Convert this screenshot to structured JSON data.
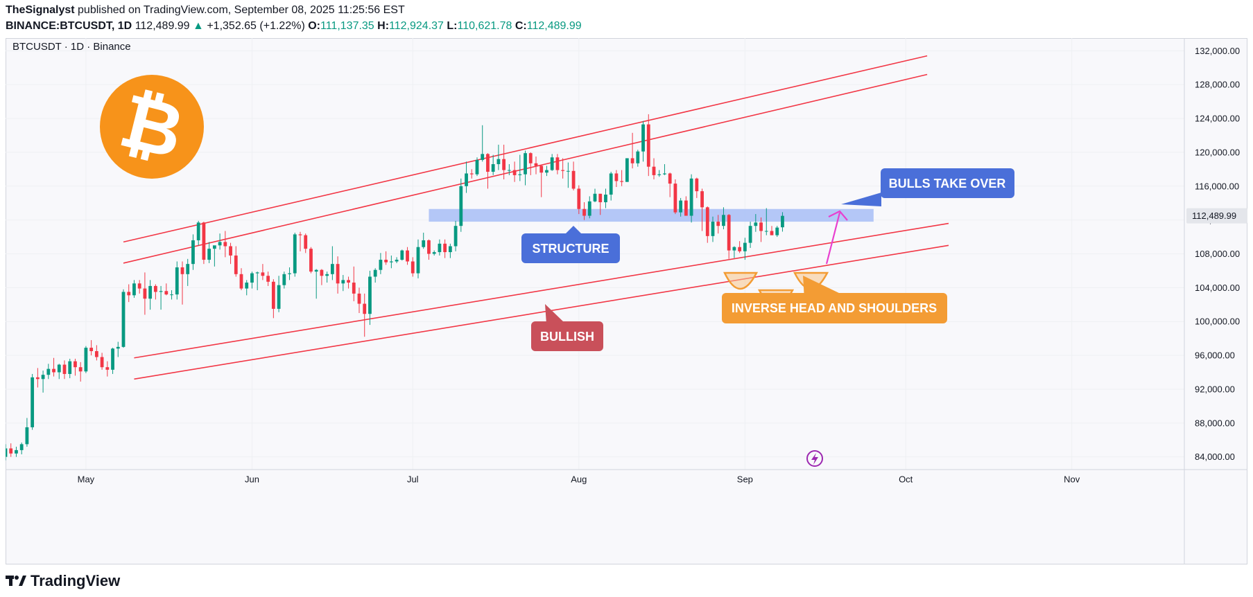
{
  "header": {
    "author": "TheSignalyst",
    "published_text": "published on TradingView.com, September 08, 2025 11:25:56 EST",
    "symbol": "BINANCE:BTCUSDT, 1D",
    "last": "112,489.99",
    "change": "+1,352.65 (+1.22%)",
    "o_label": "O:",
    "o_value": "111,137.35",
    "h_label": "H:",
    "h_value": "112,924.37",
    "l_label": "L:",
    "l_value": "110,621.78",
    "c_label": "C:",
    "c_value": "112,489.99"
  },
  "footer": {
    "brand": "TradingView"
  },
  "colors": {
    "up": "#089981",
    "down": "#f23645",
    "channel": "#f23645",
    "structure": "#9db7f5"
  },
  "chart_data": {
    "type": "candlestick",
    "title": "BTCUSDT · 1D · Binance",
    "ylim": [
      82500,
      133500
    ],
    "y_ticks": [
      84000,
      88000,
      92000,
      96000,
      100000,
      104000,
      108000,
      112000,
      116000,
      120000,
      124000,
      128000,
      132000
    ],
    "y_tick_labels": [
      "84,000.00",
      "88,000.00",
      "92,000.00",
      "96,000.00",
      "100,000.00",
      "104,000.00",
      "108,000.00",
      "112,000.00",
      "116,000.00",
      "120,000.00",
      "124,000.00",
      "128,000.00",
      "132,000.00"
    ],
    "x_labels": [
      "May",
      "Jun",
      "Jul",
      "Aug",
      "Sep",
      "Oct",
      "Nov"
    ],
    "x_label_dates": [
      "2025-05-01",
      "2025-06-01",
      "2025-07-01",
      "2025-08-01",
      "2025-09-01",
      "2025-10-01",
      "2025-11-01"
    ],
    "xlim": [
      "2025-04-16",
      "2025-11-22"
    ],
    "last_price_label": "112,489.99",
    "candles": [
      [
        "2025-04-16",
        84000,
        85500,
        83600,
        85000
      ],
      [
        "2025-04-17",
        85000,
        85600,
        84000,
        84400
      ],
      [
        "2025-04-18",
        84400,
        85200,
        84000,
        84800
      ],
      [
        "2025-04-19",
        84800,
        85700,
        84300,
        85500
      ],
      [
        "2025-04-20",
        85500,
        88600,
        85200,
        87500
      ],
      [
        "2025-04-21",
        87500,
        93800,
        87200,
        93400
      ],
      [
        "2025-04-22",
        93400,
        94500,
        92200,
        93200
      ],
      [
        "2025-04-23",
        93200,
        94200,
        91600,
        93700
      ],
      [
        "2025-04-24",
        93700,
        95000,
        93200,
        94400
      ],
      [
        "2025-04-25",
        94400,
        95700,
        93500,
        94000
      ],
      [
        "2025-04-26",
        94000,
        95000,
        93200,
        94900
      ],
      [
        "2025-04-27",
        94900,
        95400,
        93200,
        93800
      ],
      [
        "2025-04-28",
        93800,
        95600,
        93300,
        95300
      ],
      [
        "2025-04-29",
        95300,
        95600,
        93600,
        94600
      ],
      [
        "2025-04-30",
        94600,
        95200,
        92900,
        94100
      ],
      [
        "2025-05-01",
        94100,
        97100,
        93900,
        96900
      ],
      [
        "2025-05-02",
        96900,
        97800,
        96000,
        96500
      ],
      [
        "2025-05-03",
        96500,
        97200,
        95400,
        95800
      ],
      [
        "2025-05-04",
        95800,
        96300,
        94300,
        94600
      ],
      [
        "2025-05-05",
        94600,
        95300,
        93500,
        94300
      ],
      [
        "2025-05-06",
        94300,
        96900,
        93800,
        96800
      ],
      [
        "2025-05-07",
        96800,
        97600,
        95800,
        97000
      ],
      [
        "2025-05-08",
        97000,
        103800,
        96900,
        103500
      ],
      [
        "2025-05-09",
        103500,
        104400,
        102300,
        103100
      ],
      [
        "2025-05-10",
        103100,
        104900,
        102800,
        104500
      ],
      [
        "2025-05-11",
        104500,
        104900,
        103300,
        103900
      ],
      [
        "2025-05-12",
        103900,
        105800,
        100800,
        102700
      ],
      [
        "2025-05-13",
        102700,
        104900,
        101400,
        104200
      ],
      [
        "2025-05-14",
        104200,
        104400,
        102600,
        103500
      ],
      [
        "2025-05-15",
        103500,
        104200,
        101400,
        103600
      ],
      [
        "2025-05-16",
        103600,
        104500,
        103100,
        103200
      ],
      [
        "2025-05-17",
        103200,
        103700,
        102600,
        103200
      ],
      [
        "2025-05-18",
        103200,
        107100,
        102600,
        106400
      ],
      [
        "2025-05-19",
        106400,
        107100,
        102000,
        105600
      ],
      [
        "2025-05-20",
        105600,
        107400,
        104200,
        106800
      ],
      [
        "2025-05-21",
        106800,
        110300,
        106100,
        109600
      ],
      [
        "2025-05-22",
        109600,
        111900,
        109000,
        111700
      ],
      [
        "2025-05-23",
        111700,
        111800,
        106800,
        107300
      ],
      [
        "2025-05-24",
        107300,
        109400,
        106900,
        108600
      ],
      [
        "2025-05-25",
        108600,
        108700,
        106500,
        109000
      ],
      [
        "2025-05-26",
        109000,
        110400,
        108500,
        109400
      ],
      [
        "2025-05-27",
        109400,
        110700,
        107600,
        108900
      ],
      [
        "2025-05-28",
        108900,
        109300,
        106800,
        107800
      ],
      [
        "2025-05-29",
        107800,
        108900,
        105300,
        105600
      ],
      [
        "2025-05-30",
        105600,
        106300,
        103700,
        103900
      ],
      [
        "2025-05-31",
        103900,
        104900,
        103100,
        104600
      ],
      [
        "2025-06-01",
        104600,
        105900,
        103900,
        105700
      ],
      [
        "2025-06-02",
        105700,
        105900,
        103700,
        105800
      ],
      [
        "2025-06-03",
        105800,
        106800,
        104900,
        105400
      ],
      [
        "2025-06-04",
        105400,
        105900,
        104200,
        104700
      ],
      [
        "2025-06-05",
        104700,
        105000,
        100400,
        101500
      ],
      [
        "2025-06-06",
        101500,
        105400,
        101100,
        104300
      ],
      [
        "2025-06-07",
        104300,
        105900,
        103900,
        105600
      ],
      [
        "2025-06-08",
        105600,
        106400,
        104900,
        105700
      ],
      [
        "2025-06-09",
        105700,
        110500,
        105300,
        110300
      ],
      [
        "2025-06-10",
        110300,
        110600,
        108300,
        110200
      ],
      [
        "2025-06-11",
        110200,
        110400,
        108100,
        108600
      ],
      [
        "2025-06-12",
        108600,
        108800,
        105700,
        105900
      ],
      [
        "2025-06-13",
        105900,
        106200,
        102700,
        106100
      ],
      [
        "2025-06-14",
        106100,
        106200,
        104300,
        105400
      ],
      [
        "2025-06-15",
        105400,
        105900,
        104600,
        105600
      ],
      [
        "2025-06-16",
        105600,
        108900,
        104900,
        106800
      ],
      [
        "2025-06-17",
        106800,
        107700,
        103300,
        104500
      ],
      [
        "2025-06-18",
        104500,
        105500,
        103600,
        104900
      ],
      [
        "2025-06-19",
        104900,
        105300,
        103900,
        104600
      ],
      [
        "2025-06-20",
        104600,
        106500,
        102400,
        103300
      ],
      [
        "2025-06-21",
        103300,
        104000,
        101000,
        102100
      ],
      [
        "2025-06-22",
        102100,
        103300,
        98200,
        100900
      ],
      [
        "2025-06-23",
        100900,
        106000,
        99600,
        105300
      ],
      [
        "2025-06-24",
        105300,
        106300,
        104600,
        106100
      ],
      [
        "2025-06-25",
        106100,
        108100,
        105600,
        107300
      ],
      [
        "2025-06-26",
        107300,
        108300,
        106700,
        107000
      ],
      [
        "2025-06-27",
        107000,
        107800,
        106300,
        107100
      ],
      [
        "2025-06-28",
        107100,
        107600,
        106900,
        107300
      ],
      [
        "2025-06-29",
        107300,
        108500,
        107200,
        108400
      ],
      [
        "2025-06-30",
        108400,
        108800,
        106700,
        107100
      ],
      [
        "2025-07-01",
        107100,
        107600,
        105300,
        105700
      ],
      [
        "2025-07-02",
        105700,
        109700,
        105100,
        108800
      ],
      [
        "2025-07-03",
        108800,
        110500,
        108600,
        109600
      ],
      [
        "2025-07-04",
        109600,
        109700,
        107300,
        108000
      ],
      [
        "2025-07-05",
        108000,
        108400,
        107800,
        108200
      ],
      [
        "2025-07-06",
        108200,
        109700,
        107800,
        109200
      ],
      [
        "2025-07-07",
        109200,
        109700,
        107500,
        108200
      ],
      [
        "2025-07-08",
        108200,
        109200,
        107500,
        108900
      ],
      [
        "2025-07-09",
        108900,
        111900,
        108300,
        111300
      ],
      [
        "2025-07-10",
        111300,
        116900,
        110600,
        116000
      ],
      [
        "2025-07-11",
        116000,
        118900,
        115200,
        117500
      ],
      [
        "2025-07-12",
        117500,
        118000,
        116900,
        117400
      ],
      [
        "2025-07-13",
        117400,
        119400,
        117200,
        119100
      ],
      [
        "2025-07-14",
        119100,
        123200,
        118900,
        119800
      ],
      [
        "2025-07-15",
        119800,
        119900,
        115700,
        117700
      ],
      [
        "2025-07-16",
        117700,
        119700,
        117300,
        118600
      ],
      [
        "2025-07-17",
        118600,
        120900,
        117900,
        119200
      ],
      [
        "2025-07-18",
        119200,
        120900,
        116800,
        117900
      ],
      [
        "2025-07-19",
        117900,
        118600,
        117300,
        117900
      ],
      [
        "2025-07-20",
        117900,
        118900,
        116500,
        117300
      ],
      [
        "2025-07-21",
        117300,
        119700,
        116600,
        117400
      ],
      [
        "2025-07-22",
        117400,
        120200,
        116100,
        119900
      ],
      [
        "2025-07-23",
        119900,
        120000,
        117300,
        118700
      ],
      [
        "2025-07-24",
        118700,
        119500,
        117400,
        118400
      ],
      [
        "2025-07-25",
        118400,
        118500,
        114700,
        117600
      ],
      [
        "2025-07-26",
        117600,
        118400,
        117200,
        117900
      ],
      [
        "2025-07-27",
        117900,
        119800,
        117800,
        119400
      ],
      [
        "2025-07-28",
        119400,
        119800,
        117400,
        117900
      ],
      [
        "2025-07-29",
        117900,
        119300,
        116900,
        117800
      ],
      [
        "2025-07-30",
        117800,
        118800,
        115800,
        117800
      ],
      [
        "2025-07-31",
        117800,
        118900,
        115500,
        115700
      ],
      [
        "2025-08-01",
        115700,
        116100,
        112700,
        113300
      ],
      [
        "2025-08-02",
        113300,
        114100,
        112000,
        112500
      ],
      [
        "2025-08-03",
        112500,
        114800,
        112200,
        114200
      ],
      [
        "2025-08-04",
        114200,
        115700,
        114100,
        115100
      ],
      [
        "2025-08-05",
        115100,
        115100,
        112600,
        114100
      ],
      [
        "2025-08-06",
        114100,
        115700,
        113400,
        115000
      ],
      [
        "2025-08-07",
        115000,
        117700,
        114300,
        117500
      ],
      [
        "2025-08-08",
        117500,
        117900,
        115900,
        116600
      ],
      [
        "2025-08-09",
        116600,
        117900,
        116000,
        116500
      ],
      [
        "2025-08-10",
        116500,
        119300,
        116500,
        119300
      ],
      [
        "2025-08-11",
        119300,
        122300,
        118100,
        118700
      ],
      [
        "2025-08-12",
        118700,
        120300,
        118300,
        120100
      ],
      [
        "2025-08-13",
        120100,
        123700,
        118900,
        123300
      ],
      [
        "2025-08-14",
        123300,
        124500,
        117200,
        118300
      ],
      [
        "2025-08-15",
        118300,
        119300,
        116800,
        117300
      ],
      [
        "2025-08-16",
        117300,
        117900,
        117100,
        117400
      ],
      [
        "2025-08-17",
        117400,
        118600,
        117300,
        117500
      ],
      [
        "2025-08-18",
        117500,
        117600,
        114700,
        116300
      ],
      [
        "2025-08-19",
        116300,
        116800,
        112700,
        112900
      ],
      [
        "2025-08-20",
        112900,
        114600,
        112400,
        114300
      ],
      [
        "2025-08-21",
        114300,
        114800,
        112600,
        112500
      ],
      [
        "2025-08-22",
        112500,
        117400,
        111700,
        116900
      ],
      [
        "2025-08-23",
        116900,
        117000,
        114600,
        115400
      ],
      [
        "2025-08-24",
        115400,
        115700,
        110700,
        113500
      ],
      [
        "2025-08-25",
        113500,
        113600,
        109300,
        110100
      ],
      [
        "2025-08-26",
        110100,
        112400,
        109400,
        111800
      ],
      [
        "2025-08-27",
        111800,
        112600,
        110400,
        111300
      ],
      [
        "2025-08-28",
        111300,
        113500,
        110900,
        112600
      ],
      [
        "2025-08-29",
        112600,
        112700,
        107400,
        108400
      ],
      [
        "2025-08-30",
        108400,
        108900,
        107500,
        108800
      ],
      [
        "2025-08-31",
        108800,
        109500,
        108100,
        108300
      ],
      [
        "2025-09-01",
        108300,
        109900,
        107300,
        109300
      ],
      [
        "2025-09-02",
        109300,
        111800,
        108700,
        111300
      ],
      [
        "2025-09-03",
        111300,
        112700,
        110600,
        111700
      ],
      [
        "2025-09-04",
        111700,
        112300,
        109400,
        110700
      ],
      [
        "2025-09-05",
        110700,
        113400,
        110200,
        110700
      ],
      [
        "2025-09-06",
        110700,
        111300,
        110200,
        110200
      ],
      [
        "2025-09-07",
        110200,
        111300,
        110000,
        111100
      ],
      [
        "2025-09-08",
        111137.35,
        112924.37,
        110621.78,
        112489.99
      ]
    ],
    "channel_lines": [
      {
        "name": "upper-outer",
        "from": [
          "2025-05-08",
          109400
        ],
        "to": [
          "2025-10-05",
          131400
        ]
      },
      {
        "name": "upper-inner",
        "from": [
          "2025-05-08",
          106900
        ],
        "to": [
          "2025-10-05",
          129200
        ]
      },
      {
        "name": "lower-inner",
        "from": [
          "2025-05-10",
          95700
        ],
        "to": [
          "2025-10-09",
          111600
        ]
      },
      {
        "name": "lower-outer",
        "from": [
          "2025-05-10",
          93200
        ],
        "to": [
          "2025-10-09",
          109000
        ]
      }
    ],
    "structure_zone": {
      "from": "2025-07-04",
      "to": "2025-09-25",
      "low": 111800,
      "high": 113300
    },
    "annotations": [
      {
        "text": "BULLS TAKE OVER",
        "color": "#4a6fd9"
      },
      {
        "text": "STRUCTURE",
        "color": "#4a6fd9"
      },
      {
        "text": "INVERSE HEAD AND SHOULDERS",
        "color": "#f39c34"
      },
      {
        "text": "BULLISH",
        "color": "#c9505a"
      }
    ]
  }
}
